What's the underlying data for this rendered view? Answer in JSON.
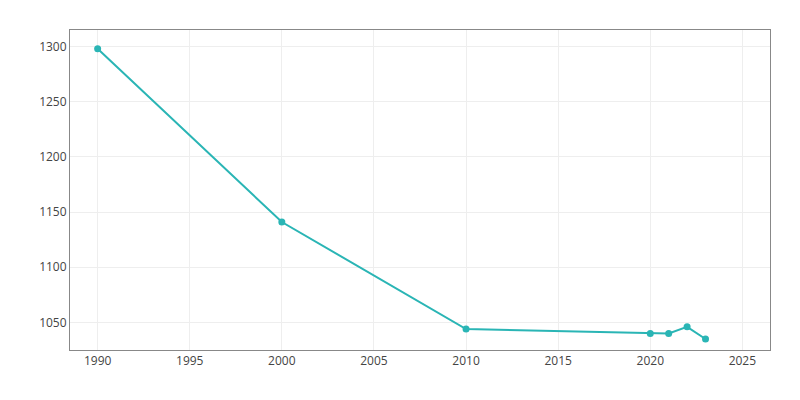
{
  "chart_data": {
    "type": "line",
    "x": [
      1990,
      2000,
      2010,
      2020,
      2021,
      2022,
      2023
    ],
    "values": [
      1298,
      1141,
      1044,
      1040,
      1040,
      1046,
      1035
    ],
    "color": "#2ab5b5",
    "marker": "circle",
    "line_style": "solid",
    "xlim": [
      1988.5,
      2026.5
    ],
    "ylim": [
      1025,
      1315
    ],
    "xticks": [
      1990,
      1995,
      2000,
      2005,
      2010,
      2015,
      2020,
      2025
    ],
    "yticks": [
      1050,
      1100,
      1150,
      1200,
      1250,
      1300
    ],
    "grid": true
  }
}
